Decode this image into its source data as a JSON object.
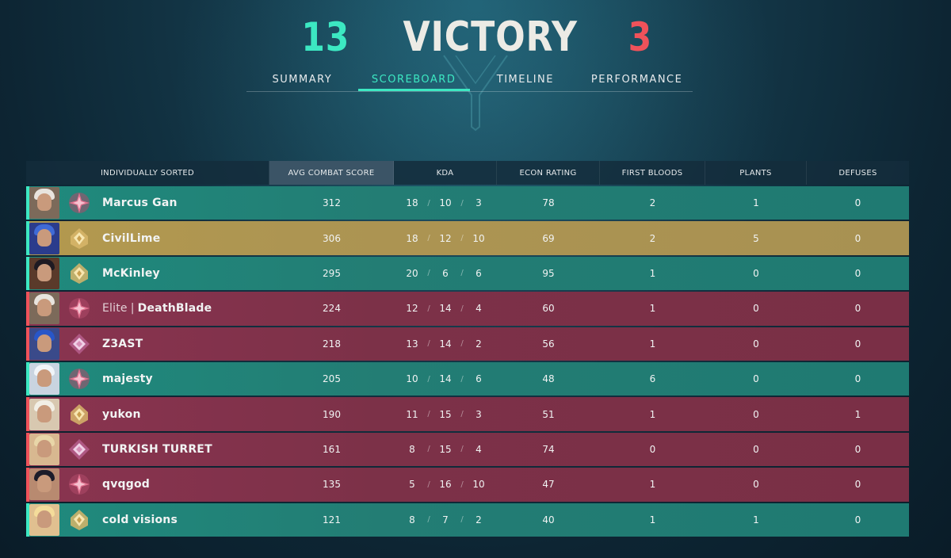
{
  "header": {
    "team_score": "13",
    "result": "VICTORY",
    "enemy_score": "3"
  },
  "tabs": [
    {
      "label": "SUMMARY",
      "active": false
    },
    {
      "label": "SCOREBOARD",
      "active": true
    },
    {
      "label": "TIMELINE",
      "active": false
    },
    {
      "label": "PERFORMANCE",
      "active": false
    }
  ],
  "table": {
    "columns": {
      "player": "INDIVIDUALLY SORTED",
      "acs": "AVG COMBAT SCORE",
      "kda": "KDA",
      "econ": "ECON RATING",
      "fb": "FIRST BLOODS",
      "plants": "PLANTS",
      "defuses": "DEFUSES"
    },
    "rows": [
      {
        "team": "green",
        "avatar_color": "#7c6a5a",
        "hair_color": "#e8e4de",
        "rank_icon": "immortal-rank-icon",
        "tag": "",
        "name": "Marcus Gan",
        "acs": "312",
        "k": "18",
        "d": "10",
        "a": "3",
        "econ": "78",
        "fb": "2",
        "plants": "1",
        "defuses": "0"
      },
      {
        "team": "gold",
        "avatar_color": "#2b3c8c",
        "hair_color": "#3f6ad6",
        "rank_icon": "ascendant-rank-icon",
        "tag": "",
        "name": "CivilLime",
        "acs": "306",
        "k": "18",
        "d": "12",
        "a": "10",
        "econ": "69",
        "fb": "2",
        "plants": "5",
        "defuses": "0"
      },
      {
        "team": "green",
        "avatar_color": "#5a3a2a",
        "hair_color": "#1e1a22",
        "rank_icon": "ascendant-rank-icon",
        "tag": "",
        "name": "McKinley",
        "acs": "295",
        "k": "20",
        "d": "6",
        "a": "6",
        "econ": "95",
        "fb": "1",
        "plants": "0",
        "defuses": "0"
      },
      {
        "team": "red",
        "avatar_color": "#7c6a5a",
        "hair_color": "#e8e4de",
        "rank_icon": "immortal-rank-icon",
        "tag": "Elite",
        "name": "DeathBlade",
        "acs": "224",
        "k": "12",
        "d": "14",
        "a": "4",
        "econ": "60",
        "fb": "1",
        "plants": "0",
        "defuses": "0"
      },
      {
        "team": "red",
        "avatar_color": "#3a4a8a",
        "hair_color": "#2856c8",
        "rank_icon": "diamond-rank-icon",
        "tag": "",
        "name": "Z3AST",
        "acs": "218",
        "k": "13",
        "d": "14",
        "a": "2",
        "econ": "56",
        "fb": "1",
        "plants": "0",
        "defuses": "0"
      },
      {
        "team": "green",
        "avatar_color": "#c9d4e0",
        "hair_color": "#f0f4f8",
        "rank_icon": "immortal-rank-icon",
        "tag": "",
        "name": "majesty",
        "acs": "205",
        "k": "10",
        "d": "14",
        "a": "6",
        "econ": "48",
        "fb": "6",
        "plants": "0",
        "defuses": "0"
      },
      {
        "team": "red",
        "avatar_color": "#d8c8b0",
        "hair_color": "#f2efe6",
        "rank_icon": "ascendant-rank-icon",
        "tag": "",
        "name": "yukon",
        "acs": "190",
        "k": "11",
        "d": "15",
        "a": "3",
        "econ": "51",
        "fb": "1",
        "plants": "0",
        "defuses": "1"
      },
      {
        "team": "red",
        "avatar_color": "#d8b890",
        "hair_color": "#e8d6a8",
        "rank_icon": "diamond-rank-icon",
        "tag": "",
        "name": "TURKISH TURRET",
        "acs": "161",
        "k": "8",
        "d": "15",
        "a": "4",
        "econ": "74",
        "fb": "0",
        "plants": "0",
        "defuses": "0"
      },
      {
        "team": "red",
        "avatar_color": "#b88a70",
        "hair_color": "#1c1c2a",
        "rank_icon": "immortal-rank-icon",
        "tag": "",
        "name": "qvqgod",
        "acs": "135",
        "k": "5",
        "d": "16",
        "a": "10",
        "econ": "47",
        "fb": "1",
        "plants": "0",
        "defuses": "0"
      },
      {
        "team": "green",
        "avatar_color": "#e0c090",
        "hair_color": "#f4dc9a",
        "rank_icon": "ascendant-rank-icon",
        "tag": "",
        "name": "cold visions",
        "acs": "121",
        "k": "8",
        "d": "7",
        "a": "2",
        "econ": "40",
        "fb": "1",
        "plants": "1",
        "defuses": "0"
      }
    ]
  },
  "colors": {
    "accent": "#3ce8c2",
    "enemy": "#f0525a",
    "green_row": "#237d74",
    "red_row": "#7c3148",
    "gold_row": "#ad9552"
  }
}
